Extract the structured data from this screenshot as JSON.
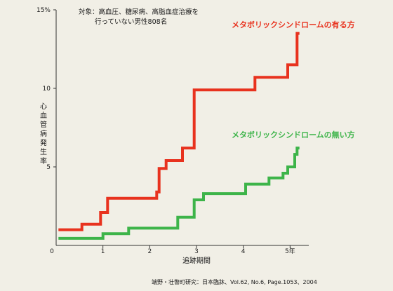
{
  "chart_data": {
    "type": "line",
    "title": "",
    "annotation_lines": [
      "対象：高血圧、糖尿病、高脂血症治療を",
      "行っていない男性808名"
    ],
    "xlabel": "追跡期間",
    "ylabel": "心血管病発生率",
    "xlim": [
      0,
      5.4
    ],
    "ylim": [
      0,
      15
    ],
    "x_ticks": [
      {
        "value": 0,
        "label": "0"
      },
      {
        "value": 1,
        "label": "1"
      },
      {
        "value": 2,
        "label": "2"
      },
      {
        "value": 3,
        "label": "3"
      },
      {
        "value": 4,
        "label": "4"
      },
      {
        "value": 5,
        "label": "5年"
      }
    ],
    "y_ticks": [
      {
        "value": 5,
        "label": "5"
      },
      {
        "value": 10,
        "label": "10"
      },
      {
        "value": 15,
        "label": "15%"
      }
    ],
    "grid": false,
    "legend": "inline labels near line ends",
    "step": true,
    "series": [
      {
        "name": "メタボリックシンドロームの有る方",
        "color": "#e8321e",
        "points": [
          [
            0.05,
            1.0
          ],
          [
            0.55,
            1.0
          ],
          [
            0.55,
            1.35
          ],
          [
            0.95,
            1.35
          ],
          [
            0.95,
            2.1
          ],
          [
            1.1,
            2.1
          ],
          [
            1.1,
            3.0
          ],
          [
            2.15,
            3.0
          ],
          [
            2.15,
            3.4
          ],
          [
            2.2,
            3.4
          ],
          [
            2.2,
            4.9
          ],
          [
            2.35,
            4.9
          ],
          [
            2.35,
            5.4
          ],
          [
            2.7,
            5.4
          ],
          [
            2.7,
            6.2
          ],
          [
            2.95,
            6.2
          ],
          [
            2.95,
            9.9
          ],
          [
            4.25,
            9.9
          ],
          [
            4.25,
            10.7
          ],
          [
            4.95,
            10.7
          ],
          [
            4.95,
            11.5
          ],
          [
            5.15,
            11.5
          ],
          [
            5.15,
            13.5
          ],
          [
            5.2,
            13.5
          ]
        ]
      },
      {
        "name": "メタボリックシンドロームの無い方",
        "color": "#3db449",
        "points": [
          [
            0.05,
            0.45
          ],
          [
            1.0,
            0.45
          ],
          [
            1.0,
            0.75
          ],
          [
            1.55,
            0.75
          ],
          [
            1.55,
            1.1
          ],
          [
            2.6,
            1.1
          ],
          [
            2.6,
            1.8
          ],
          [
            2.95,
            1.8
          ],
          [
            2.95,
            2.9
          ],
          [
            3.15,
            2.9
          ],
          [
            3.15,
            3.3
          ],
          [
            4.05,
            3.3
          ],
          [
            4.05,
            3.9
          ],
          [
            4.55,
            3.9
          ],
          [
            4.55,
            4.3
          ],
          [
            4.85,
            4.3
          ],
          [
            4.85,
            4.6
          ],
          [
            4.95,
            4.6
          ],
          [
            4.95,
            5.0
          ],
          [
            5.1,
            5.0
          ],
          [
            5.1,
            5.8
          ],
          [
            5.15,
            5.8
          ],
          [
            5.15,
            6.2
          ],
          [
            5.2,
            6.2
          ]
        ]
      }
    ],
    "source": "端野・壮瞥町研究：日本臨牀、Vol.62, No.6, Page.1053、2004"
  }
}
